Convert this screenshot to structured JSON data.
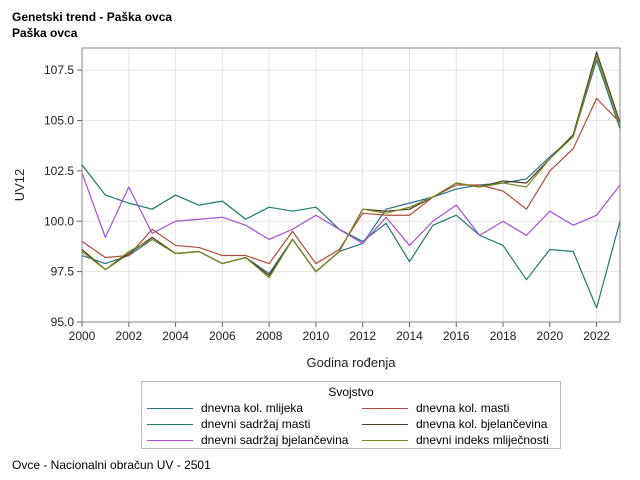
{
  "header": {
    "title": "Genetski trend - Paška ovca",
    "subtitle": "Paška ovca"
  },
  "footnote": "Ovce - Nacionalni obračun UV - 2501",
  "chart_data": {
    "type": "line",
    "xlabel": "Godina rođenja",
    "ylabel": "UV12",
    "xlim": [
      2000,
      2023
    ],
    "ylim": [
      95.0,
      108.6
    ],
    "x_ticks": [
      2000,
      2002,
      2004,
      2006,
      2008,
      2010,
      2012,
      2014,
      2016,
      2018,
      2020,
      2022
    ],
    "y_ticks": [
      95.0,
      97.5,
      100.0,
      102.5,
      105.0,
      107.5
    ],
    "grid": true,
    "legend_title": "Svojstvo",
    "legend_position": "bottom",
    "x": [
      2000,
      2001,
      2002,
      2003,
      2004,
      2005,
      2006,
      2007,
      2008,
      2009,
      2010,
      2011,
      2012,
      2013,
      2014,
      2015,
      2016,
      2017,
      2018,
      2019,
      2020,
      2021,
      2022,
      2023
    ],
    "series": [
      {
        "name": "dnevna kol. mlijeka",
        "color": "#2a6f8a",
        "values": [
          98.3,
          97.9,
          98.3,
          99.1,
          98.4,
          98.5,
          97.9,
          98.2,
          97.4,
          99.1,
          97.5,
          98.5,
          98.9,
          100.6,
          100.9,
          101.2,
          101.6,
          101.8,
          101.9,
          102.1,
          103.2,
          104.2,
          108.0,
          104.6
        ]
      },
      {
        "name": "dnevna kol. masti",
        "color": "#b24a3a",
        "values": [
          99.0,
          98.2,
          98.3,
          99.6,
          98.8,
          98.7,
          98.3,
          98.3,
          97.9,
          99.5,
          97.9,
          98.6,
          100.4,
          100.3,
          100.3,
          101.2,
          101.8,
          101.8,
          101.5,
          100.6,
          102.5,
          103.6,
          106.1,
          104.9
        ]
      },
      {
        "name": "dnevni sadržaj masti",
        "color": "#1e7b6b",
        "values": [
          102.8,
          101.3,
          100.9,
          100.6,
          101.3,
          100.8,
          101.0,
          100.1,
          100.7,
          100.5,
          100.7,
          99.6,
          99.0,
          99.9,
          98.0,
          99.8,
          100.3,
          99.3,
          98.8,
          97.1,
          98.6,
          98.5,
          95.7,
          100.0
        ]
      },
      {
        "name": "dnevna kol. bjelančevina",
        "color": "#4a3a1a",
        "values": [
          98.6,
          97.6,
          98.4,
          99.2,
          98.4,
          98.5,
          97.9,
          98.2,
          97.3,
          99.1,
          97.5,
          98.5,
          100.6,
          100.5,
          100.6,
          101.2,
          101.9,
          101.7,
          102.0,
          101.9,
          103.1,
          104.3,
          108.4,
          104.9
        ]
      },
      {
        "name": "dnevni sadržaj bjelančevina",
        "color": "#a64fd6",
        "values": [
          102.4,
          99.2,
          101.7,
          99.4,
          100.0,
          100.1,
          100.2,
          99.8,
          99.1,
          99.6,
          100.3,
          99.6,
          98.9,
          100.2,
          98.8,
          100.0,
          100.8,
          99.3,
          100.0,
          99.3,
          100.5,
          99.8,
          100.3,
          101.8
        ]
      },
      {
        "name": "dnevni indeks mliječnosti",
        "color": "#7a8a20",
        "values": [
          98.5,
          97.6,
          98.5,
          99.1,
          98.4,
          98.5,
          97.9,
          98.2,
          97.2,
          99.1,
          97.5,
          98.5,
          100.6,
          100.4,
          100.7,
          101.2,
          101.9,
          101.7,
          101.9,
          101.7,
          103.1,
          104.2,
          108.2,
          104.8
        ]
      }
    ]
  }
}
